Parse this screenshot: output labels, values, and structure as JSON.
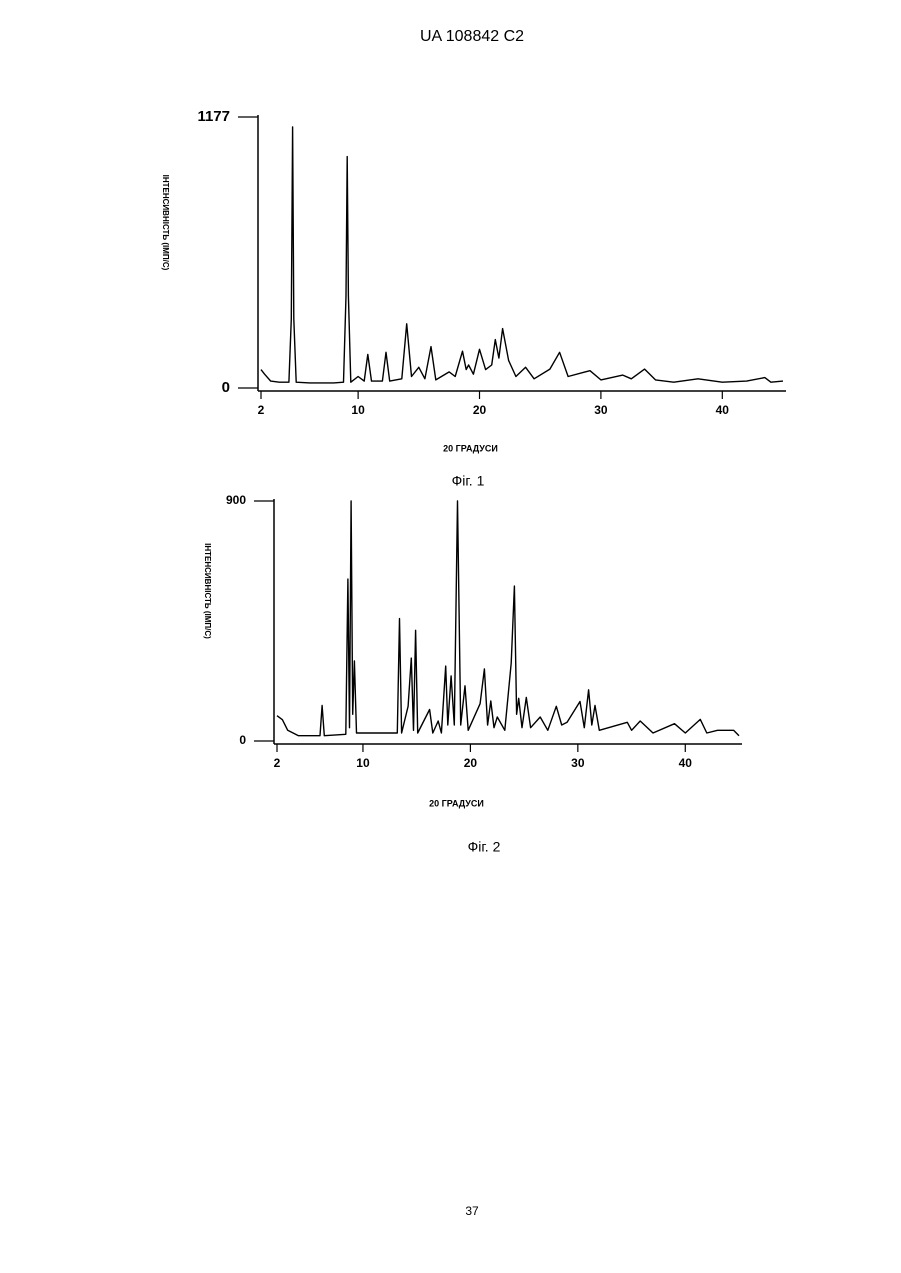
{
  "header": "UA   108842   C2",
  "page_number": "37",
  "chart_data": [
    {
      "type": "line",
      "caption": "Фіг. 1",
      "x_label": "20 ГРАДУСИ",
      "y_label": "ІНТЕНСИВНІСТЬ (ІМП/С)",
      "color": "#000000",
      "xlim": [
        2,
        45
      ],
      "ylim": [
        0,
        1177
      ],
      "xticks": [
        2,
        10,
        20,
        30,
        40
      ],
      "yticks": [
        0,
        1177
      ],
      "x": [
        2,
        2.3,
        2.8,
        3.5,
        4.3,
        4.5,
        4.6,
        4.7,
        4.9,
        6,
        8,
        8.8,
        9.0,
        9.1,
        9.2,
        9.4,
        10.0,
        10.5,
        10.8,
        11.1,
        12.0,
        12.3,
        12.6,
        13.6,
        14.0,
        14.4,
        15.0,
        15.5,
        16.0,
        16.4,
        17.5,
        18.0,
        18.6,
        18.9,
        19.1,
        19.5,
        20.0,
        20.5,
        21.0,
        21.3,
        21.6,
        21.9,
        22.4,
        23.0,
        23.8,
        24.5,
        25.8,
        26.6,
        27.3,
        28.7,
        29.1,
        30,
        31.8,
        32.5,
        33.6,
        34.5,
        36,
        38,
        40,
        42,
        43.5,
        44,
        45
      ],
      "values": [
        80,
        60,
        30,
        25,
        25,
        300,
        1134,
        300,
        25,
        22,
        22,
        25,
        400,
        1005,
        400,
        25,
        50,
        30,
        146,
        30,
        30,
        155,
        30,
        40,
        279,
        50,
        90,
        40,
        180,
        35,
        70,
        50,
        160,
        80,
        100,
        60,
        168,
        80,
        100,
        210,
        130,
        258,
        120,
        50,
        90,
        40,
        82,
        155,
        50,
        70,
        75,
        35,
        56,
        40,
        82,
        35,
        25,
        40,
        25,
        30,
        45,
        25,
        30
      ]
    },
    {
      "type": "line",
      "caption": "Фіг. 2",
      "x_label": "20 ГРАДУСИ",
      "y_label": "ІНТЕНСИВНІСТЬ (ІМП/С)",
      "color": "#000000",
      "xlim": [
        2,
        45
      ],
      "ylim": [
        0,
        900
      ],
      "xticks": [
        2,
        10,
        20,
        30,
        40
      ],
      "yticks": [
        0,
        900
      ],
      "x": [
        2,
        2.5,
        3,
        4,
        6.0,
        6.2,
        6.4,
        8.4,
        8.6,
        8.75,
        8.9,
        9.05,
        9.2,
        9.4,
        13.2,
        13.4,
        13.6,
        14.2,
        14.5,
        14.7,
        14.9,
        15.1,
        16.2,
        16.5,
        17.0,
        17.3,
        17.7,
        17.9,
        18.2,
        18.5,
        18.8,
        19.1,
        19.5,
        19.8,
        20.9,
        21.3,
        21.6,
        21.9,
        22.2,
        22.5,
        23.2,
        23.8,
        24.1,
        24.3,
        24.5,
        24.8,
        25.2,
        25.6,
        26.5,
        27.2,
        28.0,
        28.5,
        29.0,
        30.2,
        30.6,
        31.0,
        31.3,
        31.6,
        32,
        34.6,
        35.0,
        35.8,
        37,
        39,
        40,
        41.4,
        42,
        43,
        44.5,
        45
      ],
      "values": [
        95,
        80,
        40,
        20,
        20,
        133,
        20,
        25,
        607,
        50,
        900,
        100,
        300,
        30,
        30,
        459,
        30,
        130,
        311,
        40,
        415,
        30,
        118,
        30,
        75,
        30,
        281,
        60,
        244,
        60,
        900,
        60,
        207,
        40,
        140,
        270,
        60,
        150,
        50,
        90,
        40,
        292,
        581,
        100,
        160,
        50,
        163,
        50,
        90,
        40,
        130,
        60,
        70,
        148,
        50,
        192,
        60,
        133,
        40,
        70,
        40,
        75,
        30,
        65,
        30,
        81,
        30,
        40,
        40,
        20
      ]
    }
  ]
}
